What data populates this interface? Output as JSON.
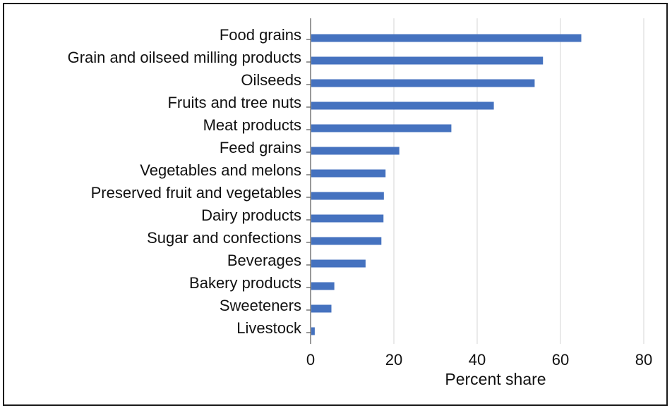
{
  "chart_data": {
    "type": "bar",
    "orientation": "horizontal",
    "categories": [
      "Food grains",
      "Grain and oilseed milling products",
      "Oilseeds",
      "Fruits and tree nuts",
      "Meat products",
      "Feed grains",
      "Vegetables and melons",
      "Preserved fruit and vegetables",
      "Dairy products",
      "Sugar and confections",
      "Beverages",
      "Bakery products",
      "Sweeteners",
      "Livestock"
    ],
    "values": [
      65,
      55.8,
      53.8,
      44,
      33.8,
      21.3,
      18,
      17.6,
      17.5,
      17,
      13.2,
      5.7,
      5,
      1
    ],
    "xlabel": "Percent share",
    "ylabel": "",
    "xlim": [
      0,
      80
    ],
    "xticks": [
      "0",
      "20",
      "40",
      "60",
      "80"
    ],
    "grid": "vertical",
    "bar_color": "#4572bf"
  }
}
